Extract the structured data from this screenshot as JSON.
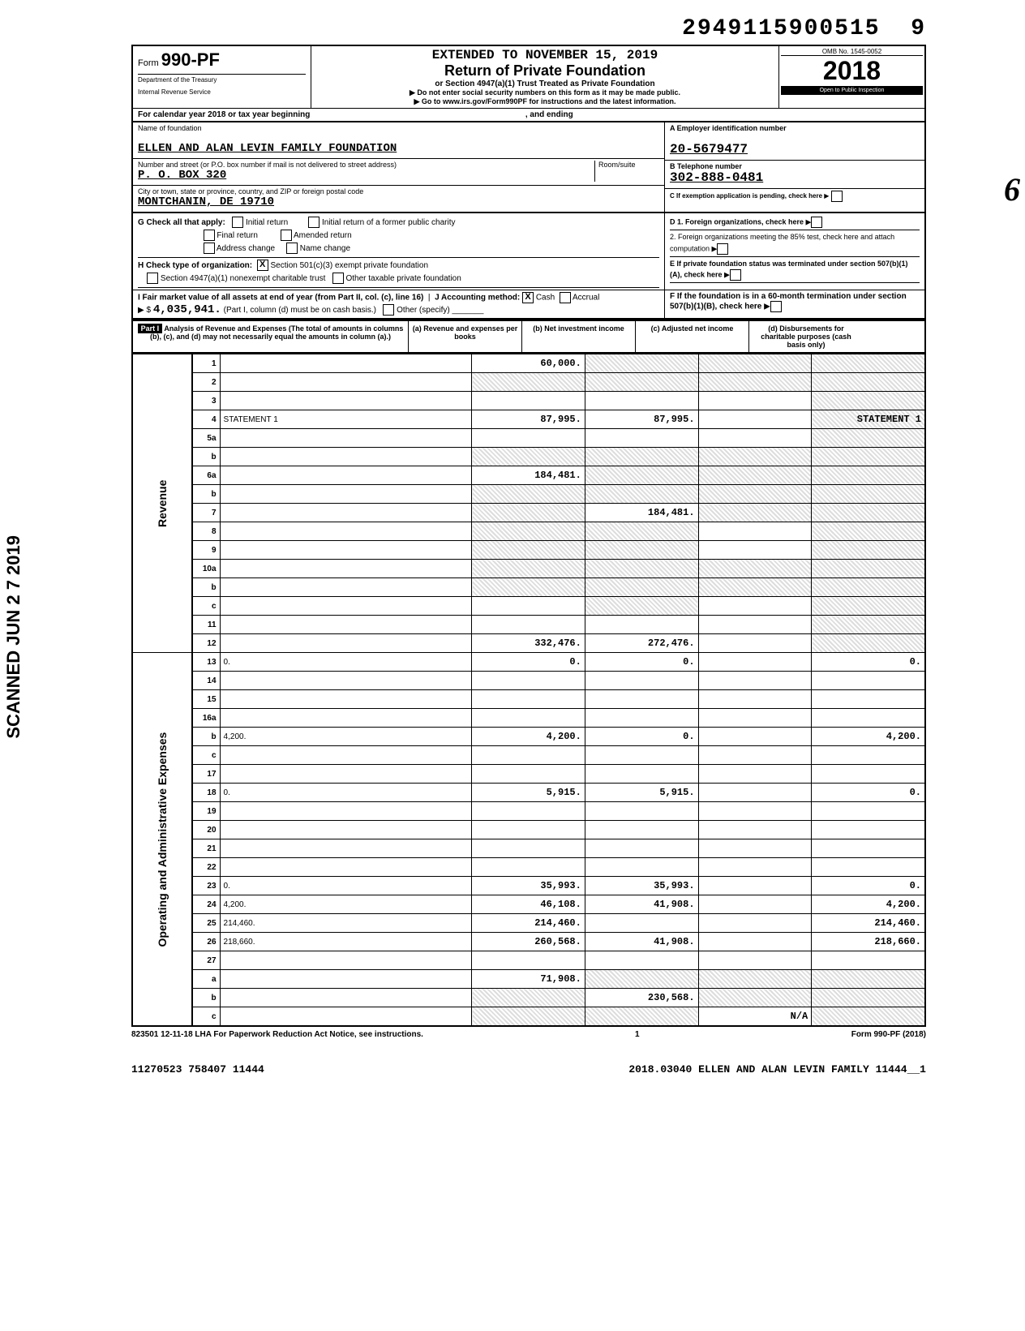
{
  "top_tracking_number": "2949115900515",
  "top_tracking_suffix": "9",
  "omb": "OMB No. 1545-0052",
  "form_name": "990-PF",
  "dept_line1": "Department of the Treasury",
  "dept_line2": "Internal Revenue Service",
  "extended_line": "EXTENDED TO NOVEMBER 15, 2019",
  "title_main": "Return of Private Foundation",
  "subtitle": "or Section 4947(a)(1) Trust Treated as Private Foundation",
  "arrow1": "▶ Do not enter social security numbers on this form as it may be made public.",
  "arrow2": "▶ Go to www.irs.gov/Form990PF for instructions and the latest information.",
  "tax_year": "2018",
  "open_inspect": "Open to Public Inspection",
  "cal_year_text": "For calendar year 2018 or tax year beginning",
  "and_ending": ", and ending",
  "name_label": "Name of foundation",
  "foundation_name": "ELLEN AND ALAN LEVIN FAMILY FOUNDATION",
  "addr_label": "Number and street (or P.O. box number if mail is not delivered to street address)",
  "address": "P. O. BOX 320",
  "city_label": "City or town, state or province, country, and ZIP or foreign postal code",
  "city": "MONTCHANIN, DE  19710",
  "room_suite": "Room/suite",
  "ein_label": "A  Employer identification number",
  "ein": "20-5679477",
  "tel_label": "B  Telephone number",
  "tel": "302-888-0481",
  "c_label": "C  If exemption application is pending, check here",
  "g_label": "G  Check all that apply:",
  "g_opts": [
    "Initial return",
    "Final return",
    "Address change",
    "Initial return of a former public charity",
    "Amended return",
    "Name change"
  ],
  "h_label": "H  Check type of organization:",
  "h_opts": [
    "Section 501(c)(3) exempt private foundation",
    "Section 4947(a)(1) nonexempt charitable trust",
    "Other taxable private foundation"
  ],
  "d_label": "D  1. Foreign organizations, check here",
  "d2_label": "2. Foreign organizations meeting the 85% test, check here and attach computation",
  "e_label": "E  If private foundation status was terminated under section 507(b)(1)(A), check here",
  "f_label": "F  If the foundation is in a 60-month termination under section 507(b)(1)(B), check here",
  "i_label": "I  Fair market value of all assets at end of year (from Part II, col. (c), line 16)",
  "j_label": "J  Accounting method:",
  "j_opts": [
    "Cash",
    "Accrual",
    "Other (specify)"
  ],
  "fmv_value": "4,035,941.",
  "fmv_note": "(Part I, column (d) must be on cash basis.)",
  "part1_title": "Part I",
  "part1_desc": "Analysis of Revenue and Expenses (The total of amounts in columns (b), (c), and (d) may not necessarily equal the amounts in column (a).)",
  "col_a": "(a) Revenue and expenses per books",
  "col_b": "(b) Net investment income",
  "col_c": "(c) Adjusted net income",
  "col_d": "(d) Disbursements for charitable purposes (cash basis only)",
  "side_revenue": "Revenue",
  "side_expenses": "Operating and Administrative Expenses",
  "scanned_stamp": "SCANNED JUN 2 7 2019",
  "margin_big": "6",
  "rows": [
    {
      "n": "1",
      "d": "",
      "a": "60,000.",
      "b": "",
      "c": "",
      "sh": [
        "b",
        "c",
        "d"
      ]
    },
    {
      "n": "2",
      "d": "",
      "a": "",
      "b": "",
      "c": "",
      "sh": [
        "a",
        "b",
        "c",
        "d"
      ]
    },
    {
      "n": "3",
      "d": "",
      "a": "",
      "b": "",
      "c": "",
      "sh": [
        "d"
      ]
    },
    {
      "n": "4",
      "d": "STATEMENT 1",
      "a": "87,995.",
      "b": "87,995.",
      "c": "",
      "sh": [
        "d"
      ]
    },
    {
      "n": "5a",
      "d": "",
      "a": "",
      "b": "",
      "c": "",
      "sh": [
        "d"
      ]
    },
    {
      "n": "b",
      "d": "",
      "a": "",
      "b": "",
      "c": "",
      "sh": [
        "a",
        "b",
        "c",
        "d"
      ]
    },
    {
      "n": "6a",
      "d": "",
      "a": "184,481.",
      "b": "",
      "c": "",
      "sh": [
        "b",
        "c",
        "d"
      ]
    },
    {
      "n": "b",
      "d": "",
      "a": "",
      "b": "",
      "c": "",
      "sh": [
        "a",
        "b",
        "c",
        "d"
      ]
    },
    {
      "n": "7",
      "d": "",
      "a": "",
      "b": "184,481.",
      "c": "",
      "sh": [
        "a",
        "c",
        "d"
      ]
    },
    {
      "n": "8",
      "d": "",
      "a": "",
      "b": "",
      "c": "",
      "sh": [
        "a",
        "b",
        "d"
      ]
    },
    {
      "n": "9",
      "d": "",
      "a": "",
      "b": "",
      "c": "",
      "sh": [
        "a",
        "b",
        "d"
      ]
    },
    {
      "n": "10a",
      "d": "",
      "a": "",
      "b": "",
      "c": "",
      "sh": [
        "a",
        "b",
        "c",
        "d"
      ]
    },
    {
      "n": "b",
      "d": "",
      "a": "",
      "b": "",
      "c": "",
      "sh": [
        "a",
        "b",
        "c",
        "d"
      ]
    },
    {
      "n": "c",
      "d": "",
      "a": "",
      "b": "",
      "c": "",
      "sh": [
        "b",
        "d"
      ]
    },
    {
      "n": "11",
      "d": "",
      "a": "",
      "b": "",
      "c": "",
      "sh": [
        "d"
      ]
    },
    {
      "n": "12",
      "d": "",
      "a": "332,476.",
      "b": "272,476.",
      "c": "",
      "sh": [
        "d"
      ]
    },
    {
      "n": "13",
      "d": "0.",
      "a": "0.",
      "b": "0.",
      "c": ""
    },
    {
      "n": "14",
      "d": "",
      "a": "",
      "b": "",
      "c": ""
    },
    {
      "n": "15",
      "d": "",
      "a": "",
      "b": "",
      "c": ""
    },
    {
      "n": "16a",
      "d": "",
      "a": "",
      "b": "",
      "c": ""
    },
    {
      "n": "b",
      "d": "4,200.",
      "a": "4,200.",
      "b": "0.",
      "c": ""
    },
    {
      "n": "c",
      "d": "",
      "a": "",
      "b": "",
      "c": ""
    },
    {
      "n": "17",
      "d": "",
      "a": "",
      "b": "",
      "c": ""
    },
    {
      "n": "18",
      "d": "0.",
      "a": "5,915.",
      "b": "5,915.",
      "c": ""
    },
    {
      "n": "19",
      "d": "",
      "a": "",
      "b": "",
      "c": ""
    },
    {
      "n": "20",
      "d": "",
      "a": "",
      "b": "",
      "c": ""
    },
    {
      "n": "21",
      "d": "",
      "a": "",
      "b": "",
      "c": ""
    },
    {
      "n": "22",
      "d": "",
      "a": "",
      "b": "",
      "c": ""
    },
    {
      "n": "23",
      "d": "0.",
      "a": "35,993.",
      "b": "35,993.",
      "c": ""
    },
    {
      "n": "24",
      "d": "4,200.",
      "a": "46,108.",
      "b": "41,908.",
      "c": ""
    },
    {
      "n": "25",
      "d": "214,460.",
      "a": "214,460.",
      "b": "",
      "c": ""
    },
    {
      "n": "26",
      "d": "218,660.",
      "a": "260,568.",
      "b": "41,908.",
      "c": ""
    },
    {
      "n": "27",
      "d": "",
      "a": "",
      "b": "",
      "c": ""
    },
    {
      "n": "a",
      "d": "",
      "a": "71,908.",
      "b": "",
      "c": "",
      "sh": [
        "b",
        "c",
        "d"
      ]
    },
    {
      "n": "b",
      "d": "",
      "a": "",
      "b": "230,568.",
      "c": "",
      "sh": [
        "a",
        "c",
        "d"
      ]
    },
    {
      "n": "c",
      "d": "",
      "a": "",
      "b": "",
      "c": "N/A",
      "sh": [
        "a",
        "b",
        "d"
      ]
    }
  ],
  "footer_lha": "823501  12-11-18   LHA  For Paperwork Reduction Act Notice, see instructions.",
  "footer_page": "1",
  "footer_form": "Form 990-PF (2018)",
  "footer_code_left": "11270523 758407 11444",
  "footer_code_right": "2018.03040 ELLEN AND ALAN LEVIN FAMILY 11444__1"
}
